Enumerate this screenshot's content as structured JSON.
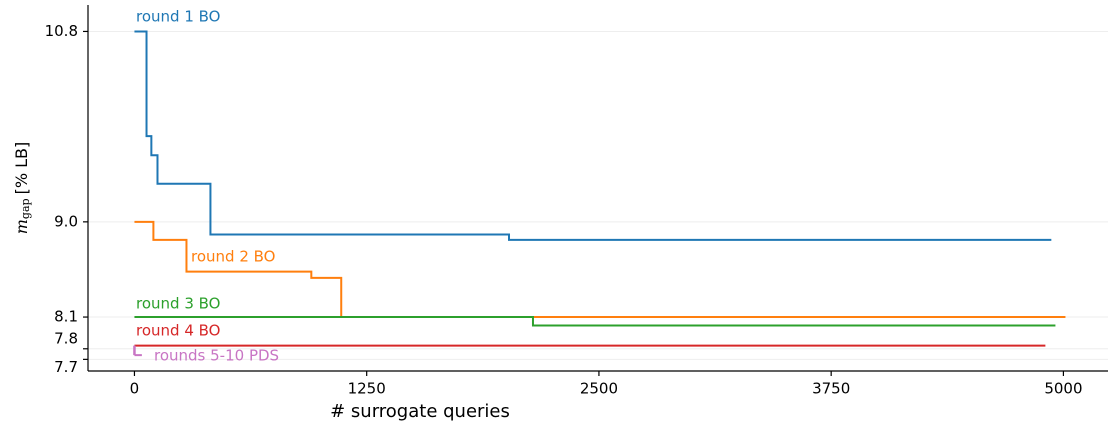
{
  "chart_data": {
    "type": "line",
    "xlabel": "# surrogate queries",
    "ylabel_symbol": "m",
    "ylabel_sub": "gap",
    "ylabel": "[% LB]",
    "xlim": [
      -250,
      5240
    ],
    "ylim": [
      7.59,
      11.05
    ],
    "xticks": [
      0,
      1250,
      2500,
      3750,
      5000
    ],
    "yticks": [
      {
        "value": 10.8,
        "label": "10.8"
      },
      {
        "value": 9.0,
        "label": "9.0"
      },
      {
        "value": 8.1,
        "label": "8.1"
      },
      7.8,
      7.7
    ],
    "grid": true,
    "step": true,
    "series": [
      {
        "name": "round 1 BO",
        "color": "#1f77b4",
        "x": [
          0,
          65,
          91,
          124,
          409,
          2016,
          4935
        ],
        "values": [
          10.8,
          9.81,
          9.63,
          9.36,
          8.88,
          8.83,
          8.83
        ]
      },
      {
        "name": "round 2 BO",
        "color": "#ff7f0e",
        "x": [
          0,
          102,
          280,
          952,
          1113,
          5011
        ],
        "values": [
          9.0,
          8.83,
          8.53,
          8.47,
          8.1,
          8.1
        ]
      },
      {
        "name": "round 3 BO",
        "color": "#2ca02c",
        "x": [
          0,
          2145,
          4957
        ],
        "values": [
          8.1,
          8.02,
          8.02
        ]
      },
      {
        "name": "round 4 BO",
        "color": "#d62728",
        "x": [
          0,
          4903
        ],
        "values": [
          7.83,
          7.83
        ]
      },
      {
        "name": "rounds 5-10 PDS",
        "color": "#c875c4",
        "x": [
          0,
          40
        ],
        "values": [
          7.74,
          7.74
        ]
      }
    ]
  }
}
